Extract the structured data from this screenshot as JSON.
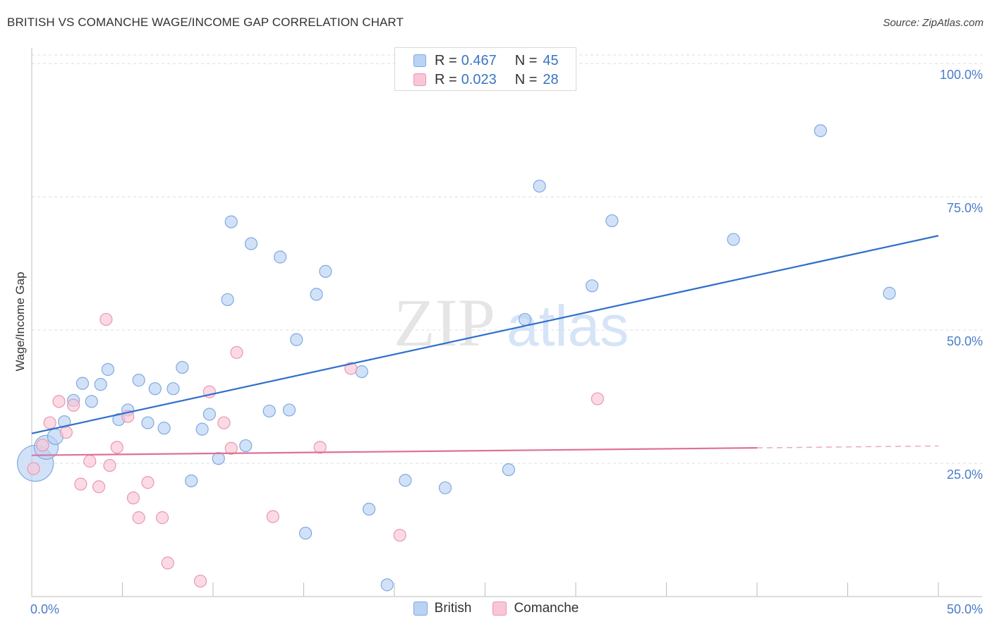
{
  "header": {
    "title": "BRITISH VS COMANCHE WAGE/INCOME GAP CORRELATION CHART",
    "source": "Source: ZipAtlas.com"
  },
  "watermark": {
    "zip": "ZIP",
    "atlas": "atlas"
  },
  "legend_top": {
    "rows": [
      {
        "r_label": "R =",
        "r_value": "0.467",
        "n_label": "N =",
        "n_value": "45"
      },
      {
        "r_label": "R =",
        "r_value": "0.023",
        "n_label": "N =",
        "n_value": "28"
      }
    ]
  },
  "legend_bottom": {
    "items": [
      {
        "label": "British"
      },
      {
        "label": "Comanche"
      }
    ]
  },
  "colors": {
    "british_fill": "#b9d3f5",
    "british_stroke": "#7fa9e0",
    "british_line": "#2f6fcc",
    "comanche_fill": "#f9c6d5",
    "comanche_stroke": "#e997b1",
    "comanche_line": "#e07096",
    "tick_label": "#4a7cc9",
    "grid": "#dcdcdc"
  },
  "chart_data": {
    "type": "scatter",
    "title": "BRITISH VS COMANCHE WAGE/INCOME GAP CORRELATION CHART",
    "xlabel": "",
    "ylabel": "Wage/Income Gap",
    "xlim": [
      0,
      50
    ],
    "ylim": [
      0,
      101.6
    ],
    "x_tick_labels": [
      "0.0%",
      "50.0%"
    ],
    "y_ticks": [
      25,
      50,
      75,
      100
    ],
    "y_tick_labels": [
      "25.0%",
      "50.0%",
      "75.0%",
      "100.0%"
    ],
    "grid": true,
    "legend_position": "top-center",
    "series": [
      {
        "name": "British",
        "r": 0.467,
        "n": 45,
        "trend": {
          "x": [
            0,
            50
          ],
          "y": [
            30.6,
            67.7
          ]
        },
        "points": [
          {
            "x": 0.2,
            "y": 25.0,
            "s": 3
          },
          {
            "x": 0.8,
            "y": 28.0,
            "s": 2
          },
          {
            "x": 1.3,
            "y": 30.0,
            "s": 1.3
          },
          {
            "x": 1.8,
            "y": 32.8
          },
          {
            "x": 2.3,
            "y": 36.8
          },
          {
            "x": 2.8,
            "y": 40.0
          },
          {
            "x": 3.3,
            "y": 36.6
          },
          {
            "x": 3.8,
            "y": 39.8
          },
          {
            "x": 4.2,
            "y": 42.6
          },
          {
            "x": 4.8,
            "y": 33.2
          },
          {
            "x": 5.3,
            "y": 35.0
          },
          {
            "x": 5.9,
            "y": 40.6
          },
          {
            "x": 6.4,
            "y": 32.6
          },
          {
            "x": 6.8,
            "y": 39.0
          },
          {
            "x": 7.3,
            "y": 31.6
          },
          {
            "x": 7.8,
            "y": 39.0
          },
          {
            "x": 8.3,
            "y": 43.0
          },
          {
            "x": 8.8,
            "y": 21.7
          },
          {
            "x": 9.4,
            "y": 31.4
          },
          {
            "x": 9.8,
            "y": 34.2
          },
          {
            "x": 10.3,
            "y": 25.9
          },
          {
            "x": 10.8,
            "y": 55.7
          },
          {
            "x": 11.0,
            "y": 70.3
          },
          {
            "x": 11.8,
            "y": 28.3
          },
          {
            "x": 12.1,
            "y": 66.2
          },
          {
            "x": 13.1,
            "y": 34.8
          },
          {
            "x": 13.7,
            "y": 63.7
          },
          {
            "x": 14.2,
            "y": 35.0
          },
          {
            "x": 14.6,
            "y": 48.2
          },
          {
            "x": 15.1,
            "y": 11.9
          },
          {
            "x": 15.7,
            "y": 56.7
          },
          {
            "x": 16.2,
            "y": 61.0
          },
          {
            "x": 18.2,
            "y": 42.2
          },
          {
            "x": 18.6,
            "y": 16.4
          },
          {
            "x": 19.6,
            "y": 2.2
          },
          {
            "x": 20.6,
            "y": 21.8
          },
          {
            "x": 22.8,
            "y": 20.4
          },
          {
            "x": 26.3,
            "y": 23.8
          },
          {
            "x": 27.2,
            "y": 52.0
          },
          {
            "x": 28.0,
            "y": 77.0
          },
          {
            "x": 30.9,
            "y": 58.3
          },
          {
            "x": 32.0,
            "y": 70.5
          },
          {
            "x": 38.7,
            "y": 67.0
          },
          {
            "x": 43.5,
            "y": 87.4
          },
          {
            "x": 47.3,
            "y": 56.9
          }
        ]
      },
      {
        "name": "Comanche",
        "r": 0.023,
        "n": 28,
        "trend": {
          "x": [
            0,
            40
          ],
          "y": [
            26.5,
            27.9
          ],
          "dashed_extension_to_x": 50
        },
        "points": [
          {
            "x": 0.1,
            "y": 24.0
          },
          {
            "x": 0.6,
            "y": 28.4
          },
          {
            "x": 1.0,
            "y": 32.6
          },
          {
            "x": 1.5,
            "y": 36.6
          },
          {
            "x": 1.9,
            "y": 30.8
          },
          {
            "x": 2.3,
            "y": 35.9
          },
          {
            "x": 2.7,
            "y": 21.1
          },
          {
            "x": 3.2,
            "y": 25.4
          },
          {
            "x": 3.7,
            "y": 20.6
          },
          {
            "x": 4.1,
            "y": 52.0
          },
          {
            "x": 4.3,
            "y": 24.6
          },
          {
            "x": 4.7,
            "y": 28.0
          },
          {
            "x": 5.3,
            "y": 33.8
          },
          {
            "x": 5.6,
            "y": 18.5
          },
          {
            "x": 5.9,
            "y": 14.8
          },
          {
            "x": 6.4,
            "y": 21.4
          },
          {
            "x": 7.2,
            "y": 14.8
          },
          {
            "x": 7.5,
            "y": 6.3
          },
          {
            "x": 9.3,
            "y": 2.9
          },
          {
            "x": 9.8,
            "y": 38.4
          },
          {
            "x": 10.6,
            "y": 32.6
          },
          {
            "x": 11.0,
            "y": 27.8
          },
          {
            "x": 11.3,
            "y": 45.8
          },
          {
            "x": 13.3,
            "y": 15.0
          },
          {
            "x": 15.9,
            "y": 28.0
          },
          {
            "x": 17.6,
            "y": 42.8
          },
          {
            "x": 20.3,
            "y": 11.5
          },
          {
            "x": 31.2,
            "y": 37.1
          }
        ]
      }
    ]
  }
}
